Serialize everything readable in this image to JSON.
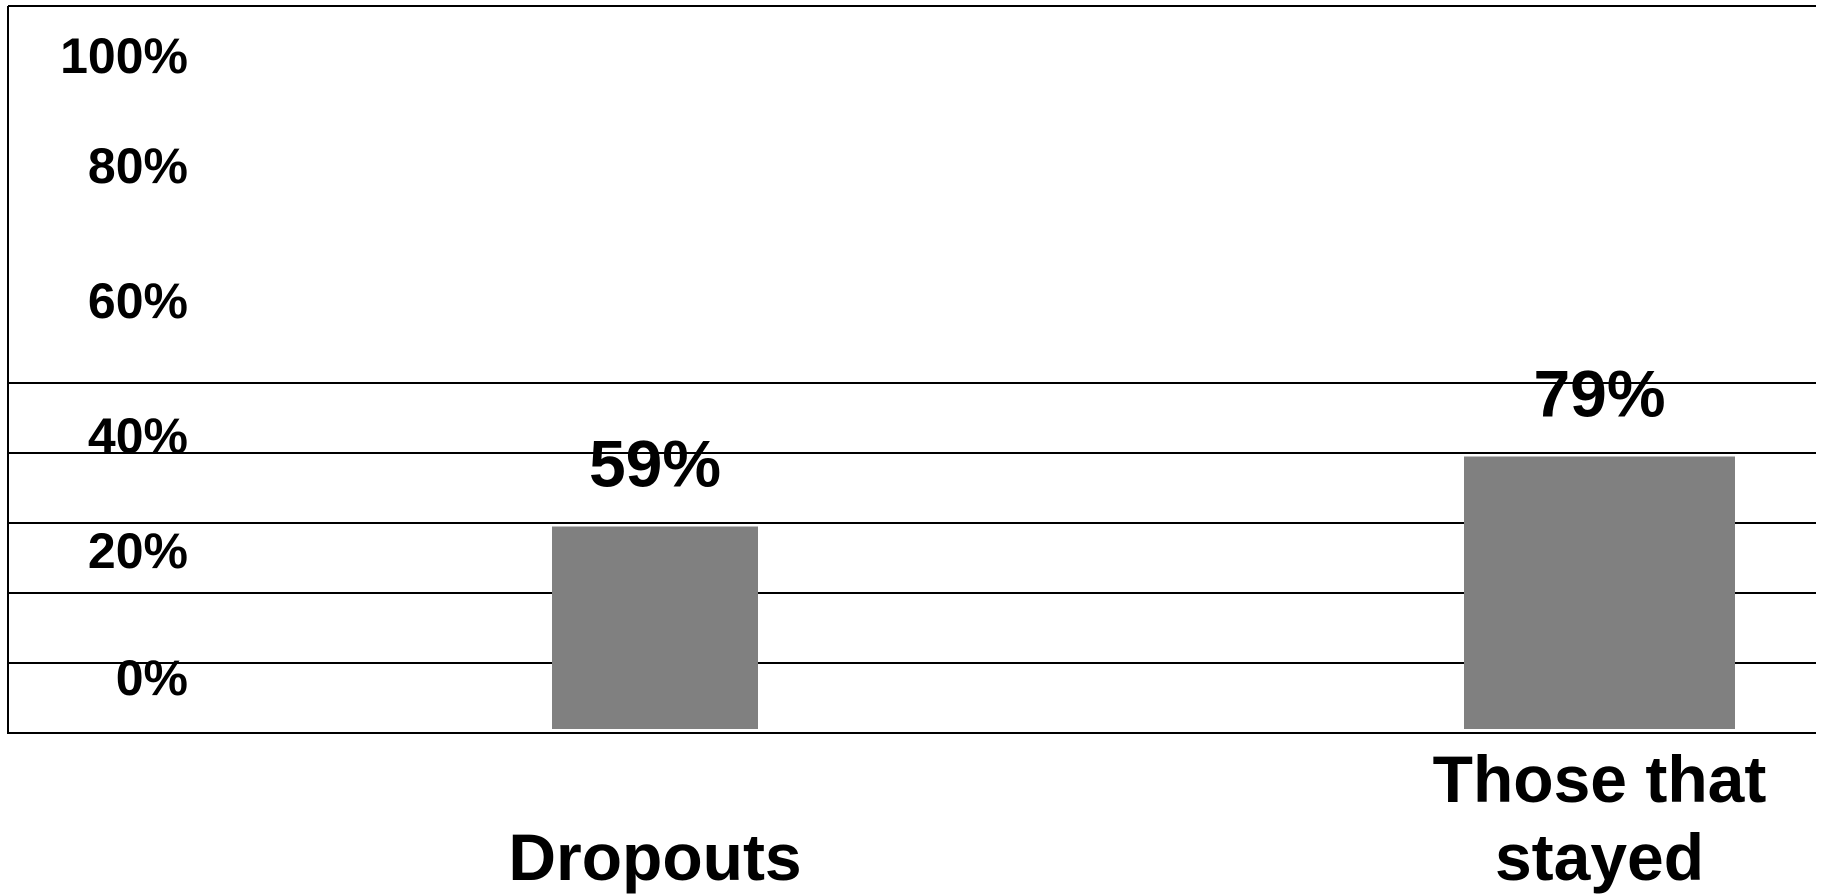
{
  "chart_data": {
    "type": "bar",
    "categories": [
      [
        "Dropouts"
      ],
      [
        "Those that",
        "stayed"
      ]
    ],
    "values": [
      59,
      79
    ],
    "data_labels": [
      "59%",
      "79%"
    ],
    "y_ticks": [
      "100%",
      "80%",
      "60%",
      "40%",
      "20%",
      "0%"
    ],
    "ylim": [
      0,
      100
    ],
    "grid": true,
    "title": "",
    "xlabel": "",
    "ylabel": "",
    "colors": {
      "bar": "#808080",
      "grid": "#000000",
      "text": "#000000",
      "background": "#ffffff"
    }
  }
}
